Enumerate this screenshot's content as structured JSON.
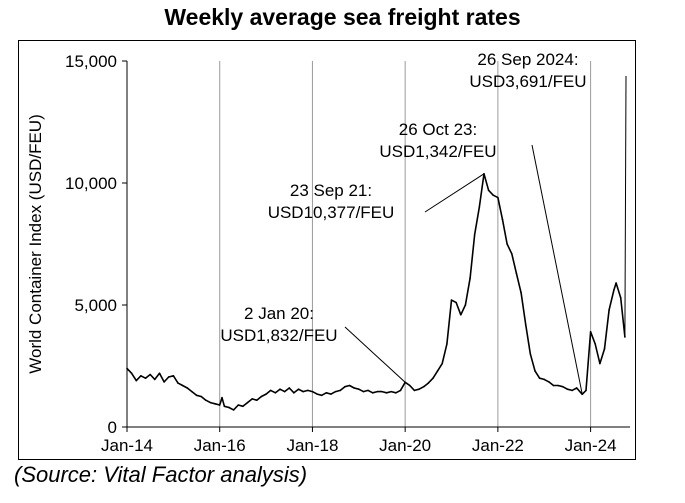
{
  "title": "Weekly average sea freight rates",
  "source": "(Source: Vital Factor analysis)",
  "chart_data": {
    "type": "line",
    "title": "Weekly average sea freight rates",
    "ylabel": "World Container Index (USD/FEU)",
    "xlabel": "",
    "ylim": [
      0,
      15000
    ],
    "yticks": [
      "0",
      "5,000",
      "10,000",
      "15,000"
    ],
    "ytick_values": [
      0,
      5000,
      10000,
      15000
    ],
    "xticks": [
      "Jan-14",
      "Jan-16",
      "Jan-18",
      "Jan-20",
      "Jan-22",
      "Jan-24"
    ],
    "xtick_values": [
      2014.0,
      2016.0,
      2018.0,
      2020.0,
      2022.0,
      2024.0
    ],
    "xlim": [
      2014.0,
      2024.85
    ],
    "grid": "vertical",
    "vlines": [
      2016.0,
      2018.0,
      2020.0,
      2022.0,
      2024.0
    ],
    "series": [
      {
        "color": "#000000",
        "points": [
          [
            2014.0,
            2400
          ],
          [
            2014.1,
            2200
          ],
          [
            2014.2,
            1900
          ],
          [
            2014.3,
            2100
          ],
          [
            2014.4,
            2000
          ],
          [
            2014.5,
            2150
          ],
          [
            2014.6,
            1950
          ],
          [
            2014.7,
            2200
          ],
          [
            2014.8,
            1850
          ],
          [
            2014.9,
            2050
          ],
          [
            2015.0,
            2100
          ],
          [
            2015.1,
            1800
          ],
          [
            2015.2,
            1700
          ],
          [
            2015.3,
            1600
          ],
          [
            2015.4,
            1450
          ],
          [
            2015.5,
            1300
          ],
          [
            2015.6,
            1250
          ],
          [
            2015.7,
            1100
          ],
          [
            2015.8,
            1000
          ],
          [
            2015.9,
            950
          ],
          [
            2016.0,
            900
          ],
          [
            2016.05,
            1200
          ],
          [
            2016.1,
            850
          ],
          [
            2016.2,
            800
          ],
          [
            2016.3,
            700
          ],
          [
            2016.4,
            900
          ],
          [
            2016.5,
            850
          ],
          [
            2016.6,
            1000
          ],
          [
            2016.7,
            1150
          ],
          [
            2016.8,
            1100
          ],
          [
            2016.9,
            1250
          ],
          [
            2017.0,
            1350
          ],
          [
            2017.1,
            1500
          ],
          [
            2017.2,
            1400
          ],
          [
            2017.3,
            1550
          ],
          [
            2017.4,
            1450
          ],
          [
            2017.5,
            1600
          ],
          [
            2017.6,
            1400
          ],
          [
            2017.7,
            1550
          ],
          [
            2017.8,
            1450
          ],
          [
            2017.9,
            1500
          ],
          [
            2018.0,
            1450
          ],
          [
            2018.1,
            1350
          ],
          [
            2018.2,
            1300
          ],
          [
            2018.3,
            1400
          ],
          [
            2018.4,
            1350
          ],
          [
            2018.5,
            1450
          ],
          [
            2018.6,
            1500
          ],
          [
            2018.7,
            1650
          ],
          [
            2018.8,
            1700
          ],
          [
            2018.9,
            1600
          ],
          [
            2019.0,
            1550
          ],
          [
            2019.1,
            1450
          ],
          [
            2019.2,
            1500
          ],
          [
            2019.3,
            1400
          ],
          [
            2019.4,
            1450
          ],
          [
            2019.5,
            1450
          ],
          [
            2019.6,
            1400
          ],
          [
            2019.7,
            1450
          ],
          [
            2019.8,
            1400
          ],
          [
            2019.9,
            1500
          ],
          [
            2020.0,
            1832
          ],
          [
            2020.1,
            1700
          ],
          [
            2020.2,
            1500
          ],
          [
            2020.3,
            1550
          ],
          [
            2020.4,
            1650
          ],
          [
            2020.5,
            1800
          ],
          [
            2020.6,
            2000
          ],
          [
            2020.7,
            2300
          ],
          [
            2020.8,
            2600
          ],
          [
            2020.9,
            3400
          ],
          [
            2021.0,
            5200
          ],
          [
            2021.1,
            5100
          ],
          [
            2021.2,
            4600
          ],
          [
            2021.3,
            5000
          ],
          [
            2021.4,
            6100
          ],
          [
            2021.5,
            7900
          ],
          [
            2021.6,
            9000
          ],
          [
            2021.7,
            10377
          ],
          [
            2021.8,
            9700
          ],
          [
            2021.9,
            9500
          ],
          [
            2022.0,
            9400
          ],
          [
            2022.1,
            8500
          ],
          [
            2022.2,
            7500
          ],
          [
            2022.3,
            7100
          ],
          [
            2022.4,
            6300
          ],
          [
            2022.5,
            5500
          ],
          [
            2022.6,
            4200
          ],
          [
            2022.7,
            3000
          ],
          [
            2022.8,
            2300
          ],
          [
            2022.9,
            2000
          ],
          [
            2023.0,
            1950
          ],
          [
            2023.1,
            1850
          ],
          [
            2023.2,
            1700
          ],
          [
            2023.3,
            1700
          ],
          [
            2023.4,
            1650
          ],
          [
            2023.5,
            1550
          ],
          [
            2023.6,
            1500
          ],
          [
            2023.7,
            1600
          ],
          [
            2023.82,
            1342
          ],
          [
            2023.9,
            1500
          ],
          [
            2024.0,
            3900
          ],
          [
            2024.1,
            3400
          ],
          [
            2024.2,
            2600
          ],
          [
            2024.3,
            3200
          ],
          [
            2024.4,
            4800
          ],
          [
            2024.5,
            5600
          ],
          [
            2024.55,
            5900
          ],
          [
            2024.65,
            5300
          ],
          [
            2024.74,
            3691
          ]
        ]
      }
    ],
    "annotations": [
      {
        "lines": [
          "2 Jan 20:",
          "USD1,832/FEU"
        ],
        "point": [
          2020.0,
          1832
        ]
      },
      {
        "lines": [
          "23 Sep 21:",
          "USD10,377/FEU"
        ],
        "point": [
          2021.7,
          10377
        ]
      },
      {
        "lines": [
          "26 Oct 23:",
          "USD1,342/FEU"
        ],
        "point": [
          2023.82,
          1342
        ]
      },
      {
        "lines": [
          "26 Sep 2024:",
          "USD3,691/FEU"
        ],
        "point": [
          2024.74,
          3691
        ]
      }
    ]
  }
}
